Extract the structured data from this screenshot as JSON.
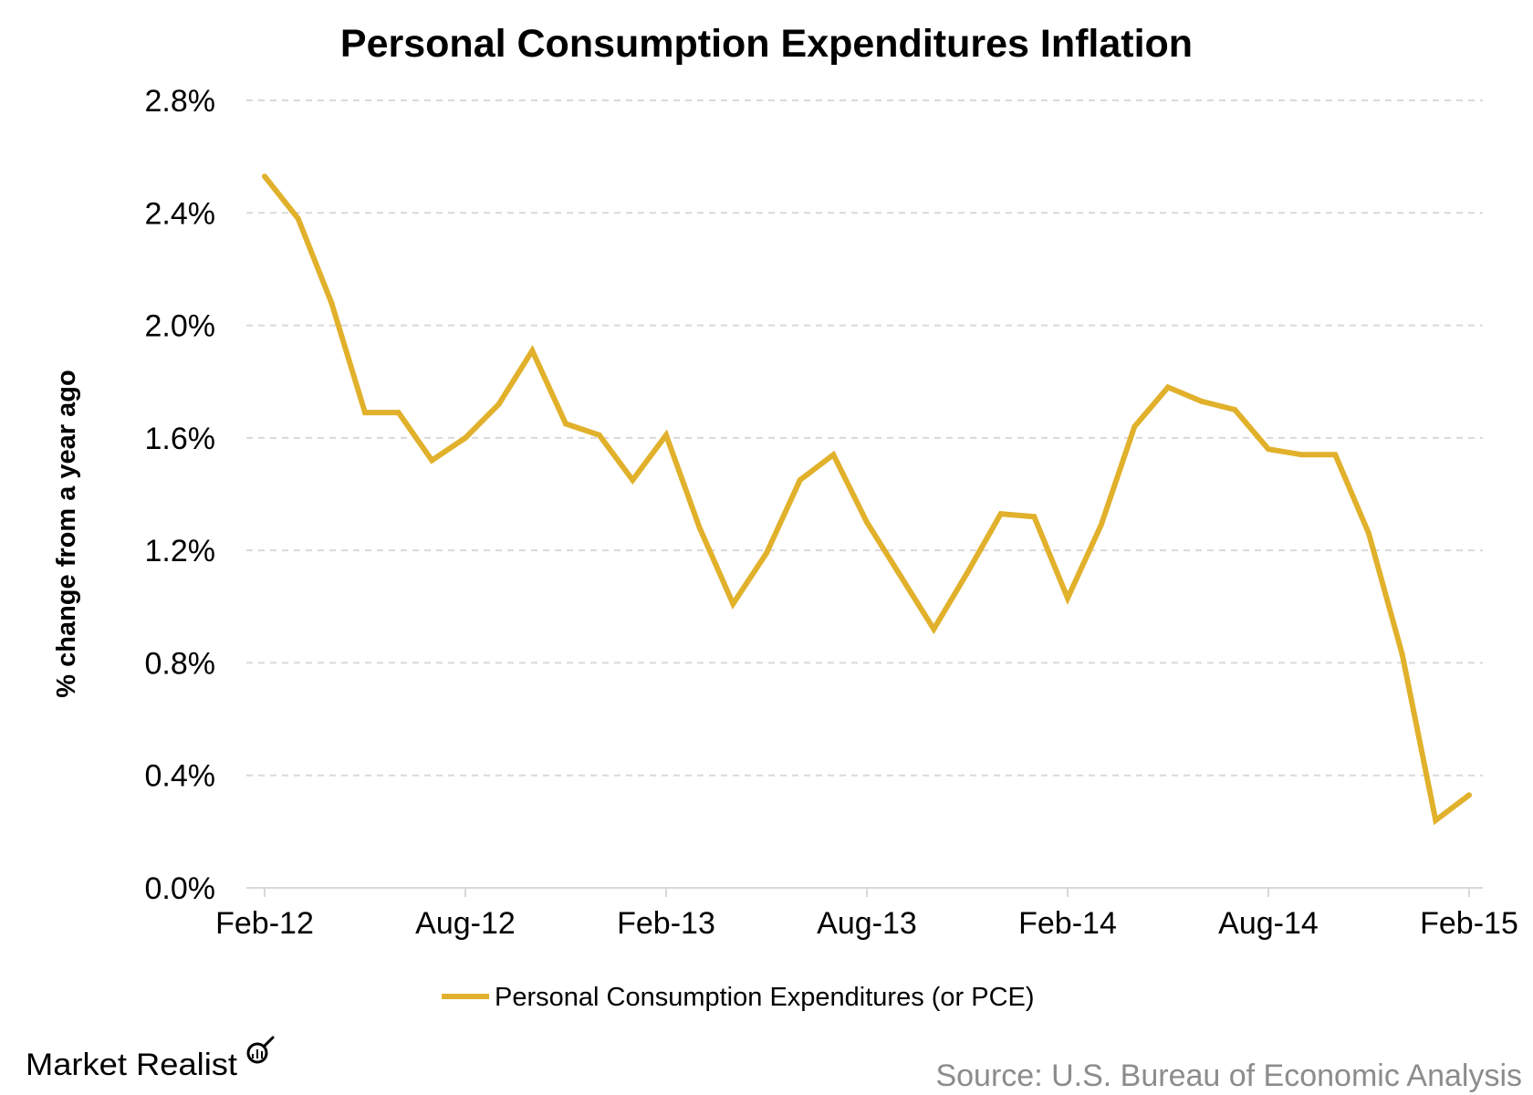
{
  "chart_data": {
    "type": "line",
    "title": "Personal Consumption Expenditures Inflation",
    "xlabel": "",
    "ylabel": "% change from a year ago",
    "x_tick_labels": [
      "Feb-12",
      "Aug-12",
      "Feb-13",
      "Aug-13",
      "Feb-14",
      "Aug-14",
      "Feb-15"
    ],
    "y_tick_labels": [
      "0.0%",
      "0.4%",
      "0.8%",
      "1.2%",
      "1.6%",
      "2.0%",
      "2.4%",
      "2.8%"
    ],
    "ylim": [
      0,
      2.8
    ],
    "grid": "horizontal dashed",
    "legend_position": "bottom",
    "series": [
      {
        "name": "Personal Consumption Expenditures (or PCE)",
        "color": "#E1B12C",
        "x": [
          "Feb-12",
          "Mar-12",
          "Apr-12",
          "May-12",
          "Jun-12",
          "Jul-12",
          "Aug-12",
          "Sep-12",
          "Oct-12",
          "Nov-12",
          "Dec-12",
          "Jan-13",
          "Feb-13",
          "Mar-13",
          "Apr-13",
          "May-13",
          "Jun-13",
          "Jul-13",
          "Aug-13",
          "Sep-13",
          "Oct-13",
          "Nov-13",
          "Dec-13",
          "Jan-14",
          "Feb-14",
          "Mar-14",
          "Apr-14",
          "May-14",
          "Jun-14",
          "Jul-14",
          "Aug-14",
          "Sep-14",
          "Oct-14",
          "Nov-14",
          "Dec-14",
          "Jan-15",
          "Feb-15"
        ],
        "values": [
          2.53,
          2.38,
          2.08,
          1.69,
          1.69,
          1.52,
          1.6,
          1.72,
          1.91,
          1.65,
          1.61,
          1.45,
          1.61,
          1.28,
          1.01,
          1.19,
          1.45,
          1.54,
          1.3,
          1.11,
          0.92,
          1.12,
          1.33,
          1.32,
          1.03,
          1.29,
          1.64,
          1.78,
          1.73,
          1.7,
          1.56,
          1.54,
          1.54,
          1.26,
          0.83,
          0.24,
          0.33
        ]
      }
    ]
  },
  "branding": {
    "logo": "Market Realist",
    "logo_icon": "magnifier-chart-icon",
    "source": "Source: U.S. Bureau of Economic Analysis"
  }
}
